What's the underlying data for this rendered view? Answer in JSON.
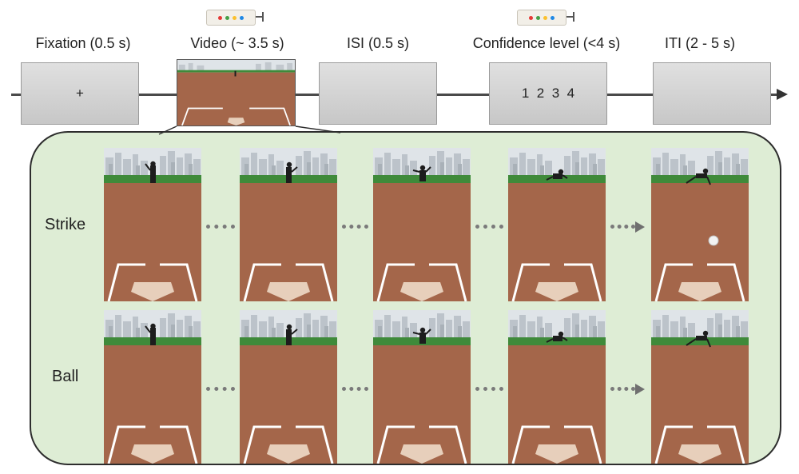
{
  "timeline": {
    "stages": [
      {
        "label": "Fixation (0.5 s)",
        "screen_text": "+"
      },
      {
        "label": "Video  (~ 3.5 s)",
        "screen_text": ""
      },
      {
        "label": "ISI (0.5 s)",
        "screen_text": ""
      },
      {
        "label": "Confidence level (<4 s)",
        "screen_text": "1  2  3  4"
      },
      {
        "label": "ITI (2 - 5 s)",
        "screen_text": ""
      }
    ]
  },
  "keypad": {
    "icon": "response-keypad-icon",
    "button_colors": [
      "#e53935",
      "#43a047",
      "#fbc02d",
      "#1e88e5"
    ]
  },
  "conditions": [
    {
      "label": "Strike"
    },
    {
      "label": "Ball"
    }
  ],
  "colors": {
    "panel_background": "#deedd5",
    "screen_gray": "#c7c7c7",
    "timeline": "#4a4a4a",
    "dirt": "#a4664a",
    "grass": "#3f8a3a",
    "sky": "#dfe4e8"
  }
}
